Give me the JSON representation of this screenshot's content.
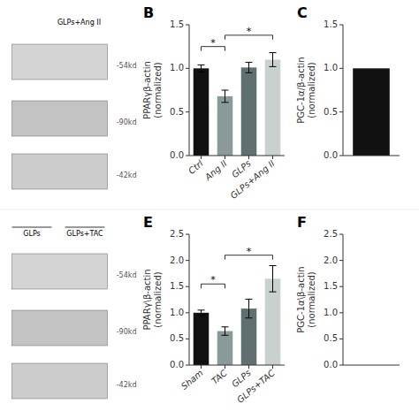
{
  "chart_data": [
    {
      "type": "blot",
      "annotations": [
        {
          "text": "GLPs+Ang II"
        }
      ],
      "band_labels": [
        "-54kd",
        "-90kd",
        "-42kd"
      ],
      "color": "#555555"
    },
    {
      "type": "bar",
      "title": "B",
      "categories": [
        "Ctrl",
        "Ang II",
        "GLPs",
        "GLPs+Ang II"
      ],
      "values": [
        1.0,
        0.68,
        1.01,
        1.1
      ],
      "errors": [
        0.04,
        0.07,
        0.06,
        0.08
      ],
      "colors": [
        "#111111",
        "#8a9a9a",
        "#607070",
        "#c8d0d0"
      ],
      "y_label": "PPARγβ-actin\n(normalized)",
      "ylim": [
        0,
        1.5
      ],
      "yticks": [
        {
          "value": 0.0,
          "label": "0.0"
        },
        0.5,
        {
          "value": 1.0,
          "label": "1.0"
        },
        1.5
      ],
      "annotations": [
        {
          "text": "*",
          "x1": "Ctrl",
          "x2": "Ang II",
          "y": 1.25
        },
        {
          "text": "*",
          "x1": "Ang II",
          "x2": "GLPs+Ang II",
          "y": 1.38
        }
      ],
      "grid": false
    },
    {
      "type": "bar",
      "title": "C",
      "categories": [
        null
      ],
      "values": [
        1.0
      ],
      "color": "#111111",
      "y_label": "PGC-1α/β-actin\n(normalized)",
      "ylim": [
        0,
        1.5
      ],
      "yticks": [
        {
          "value": 0.0,
          "label": "0.0"
        },
        0.5,
        {
          "value": 1.0,
          "label": "1.0"
        },
        1.5
      ],
      "tick_labels": "y",
      "grid": false
    },
    {
      "type": "blot",
      "group_labels": [
        "GLPs",
        "GLPs+TAC"
      ],
      "band_labels": [
        "-54kd",
        "-90kd",
        "-42kd"
      ],
      "color": "#555555"
    },
    {
      "type": "bar",
      "title": "E",
      "categories": [
        "Sham",
        "TAC",
        "GLPs",
        "GLPs+TAC"
      ],
      "values": [
        1.0,
        0.65,
        1.08,
        1.65
      ],
      "errors": [
        0.05,
        0.08,
        0.18,
        0.25
      ],
      "colors": [
        "#111111",
        "#8a9a9a",
        "#607070",
        "#c8d0d0"
      ],
      "y_label": "PPARγ\\β-actin\n(normalized)",
      "ylim": [
        0,
        2.5
      ],
      "yticks": [
        {
          "value": 0.0,
          "label": "0.0"
        },
        0.5,
        {
          "value": 1.0,
          "label": "1.0"
        },
        1.5,
        {
          "value": 2.0,
          "label": "2.0"
        },
        2.5
      ],
      "annotations": [
        {
          "text": "*",
          "x1": "Sham",
          "x2": "TAC",
          "y": 1.55
        },
        {
          "text": "*",
          "x1": "TAC",
          "x2": "GLPs+TAC",
          "y": 2.1
        }
      ],
      "grid": false
    },
    {
      "type": "bar",
      "title": "F",
      "categories": [],
      "values": [],
      "y_label": "PGC-1α\\β-actin\n(normalized)",
      "ylim": [
        0,
        2.5
      ],
      "yticks": [
        {
          "value": 0.0,
          "label": "0.0"
        },
        0.5,
        {
          "value": 1.0,
          "label": "1.0"
        },
        1.5,
        {
          "value": 2.0,
          "label": "2.0"
        },
        2.5
      ],
      "tick_labels": "y",
      "grid": false
    }
  ]
}
